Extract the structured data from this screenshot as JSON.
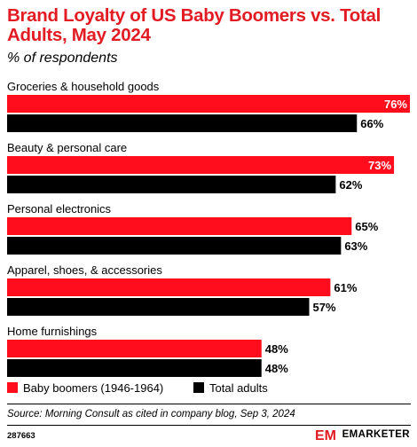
{
  "header": {
    "title": "Brand Loyalty of US Baby Boomers vs. Total Adults, May 2024",
    "subtitle": "% of respondents"
  },
  "colors": {
    "accent": "#e31b23",
    "series_primary": "#ff0d1c",
    "series_secondary": "#000000"
  },
  "chart_data": {
    "type": "bar",
    "orientation": "horizontal",
    "title": "Brand Loyalty of US Baby Boomers vs. Total Adults, May 2024",
    "subtitle": "% of respondents",
    "categories": [
      "Groceries & household goods",
      "Beauty & personal care",
      "Personal electronics",
      "Apparel, shoes, & accessories",
      "Home furnishings"
    ],
    "series": [
      {
        "name": "Baby boomers (1946-1964)",
        "color": "#ff0d1c",
        "values": [
          76,
          73,
          65,
          61,
          48
        ],
        "labels": [
          "76%",
          "73%",
          "65%",
          "61%",
          "48%"
        ]
      },
      {
        "name": "Total adults",
        "color": "#000000",
        "values": [
          66,
          62,
          63,
          57,
          48
        ],
        "labels": [
          "66%",
          "62%",
          "63%",
          "57%",
          "48%"
        ]
      }
    ],
    "xlim": [
      0,
      76
    ],
    "grid": false,
    "legend_position": "bottom-left"
  },
  "legend": {
    "items": [
      {
        "label": "Baby boomers (1946-1964)",
        "color": "#ff0d1c"
      },
      {
        "label": "Total adults",
        "color": "#000000"
      }
    ]
  },
  "footer": {
    "source": "Source: Morning Consult as cited in company blog, Sep 3, 2024",
    "chart_id": "287663",
    "brand": "EMARKETER",
    "brand_logo_text": "EM"
  }
}
